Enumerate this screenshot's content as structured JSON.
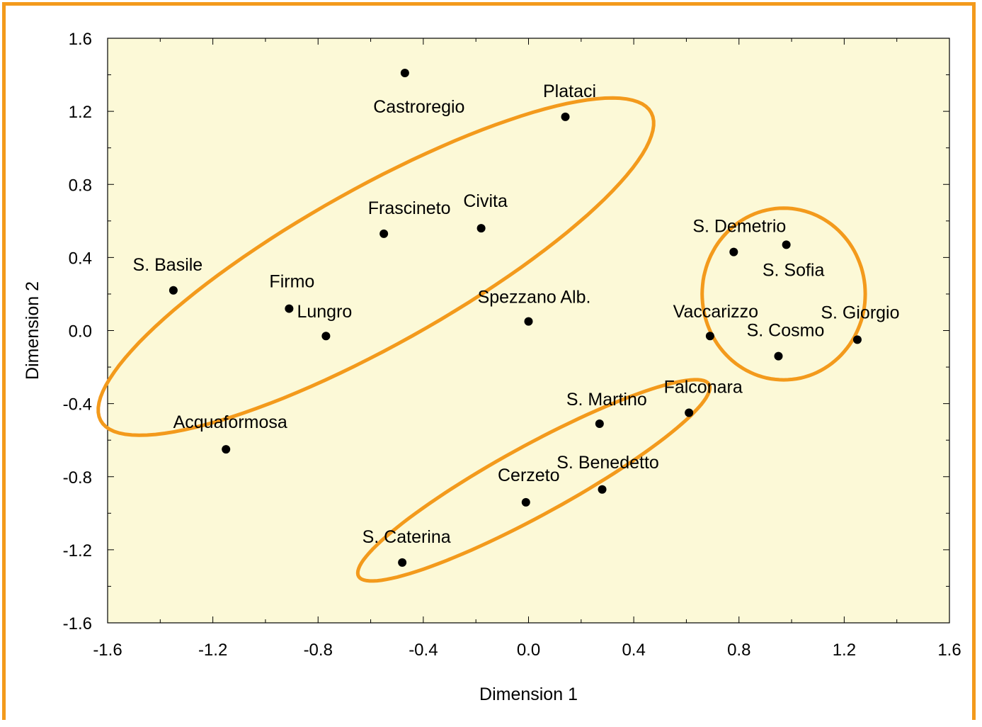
{
  "chart_data": {
    "type": "scatter",
    "title": "",
    "xlabel": "Dimension 1",
    "ylabel": "Dimension 2",
    "xlim": [
      -1.6,
      1.6
    ],
    "ylim": [
      -1.6,
      1.6
    ],
    "xticks": [
      "-1.6",
      "-1.2",
      "-0.8",
      "-0.4",
      "0.0",
      "0.4",
      "0.8",
      "1.2",
      "1.6"
    ],
    "yticks": [
      "1.6",
      "1.2",
      "0.8",
      "0.4",
      "0.0",
      "-0.4",
      "-0.8",
      "-1.2",
      "-1.6"
    ],
    "grid": false,
    "colors": {
      "plot_background": "#fcf9d7",
      "ellipse": "#f39a1c",
      "frame": "#f39a1c",
      "marker": "#000000"
    },
    "points": [
      {
        "label": "Castroregio",
        "x": -0.47,
        "y": 1.41
      },
      {
        "label": "Plataci",
        "x": 0.14,
        "y": 1.17
      },
      {
        "label": "Frascineto",
        "x": -0.55,
        "y": 0.53
      },
      {
        "label": "Civita",
        "x": -0.18,
        "y": 0.56
      },
      {
        "label": "S. Basile",
        "x": -1.35,
        "y": 0.22
      },
      {
        "label": "Firmo",
        "x": -0.91,
        "y": 0.12
      },
      {
        "label": "Lungro",
        "x": -0.77,
        "y": -0.03
      },
      {
        "label": "Spezzano Alb.",
        "x": 0.0,
        "y": 0.05
      },
      {
        "label": "Acquaformosa",
        "x": -1.15,
        "y": -0.65
      },
      {
        "label": "S. Demetrio",
        "x": 0.78,
        "y": 0.43
      },
      {
        "label": "S. Sofia",
        "x": 0.98,
        "y": 0.47
      },
      {
        "label": "Vaccarizzo",
        "x": 0.69,
        "y": -0.03
      },
      {
        "label": "S. Cosmo",
        "x": 0.95,
        "y": -0.14
      },
      {
        "label": "S. Giorgio",
        "x": 1.25,
        "y": -0.05
      },
      {
        "label": "Falconara",
        "x": 0.61,
        "y": -0.45
      },
      {
        "label": "S. Martino",
        "x": 0.27,
        "y": -0.51
      },
      {
        "label": "S. Benedetto",
        "x": 0.28,
        "y": -0.87
      },
      {
        "label": "Cerzeto",
        "x": -0.01,
        "y": -0.94
      },
      {
        "label": "S. Caterina",
        "x": -0.48,
        "y": -1.27
      }
    ],
    "clusters": [
      {
        "members": [
          "S. Basile",
          "Firmo",
          "Lungro",
          "Frascineto",
          "Civita",
          "Castroregio",
          "Acquaformosa"
        ],
        "cx": -0.58,
        "cy": 0.35,
        "rx": 1.35,
        "ry": 0.38,
        "angle_deg": 40.5
      },
      {
        "members": [
          "Falconara",
          "S. Martino",
          "S. Benedetto",
          "Cerzeto",
          "S. Caterina"
        ],
        "cx": 0.02,
        "cy": -0.82,
        "rx": 0.85,
        "ry": 0.17,
        "angle_deg": 39
      },
      {
        "members": [
          "S. Demetrio",
          "S. Sofia",
          "Vaccarizzo",
          "S. Cosmo",
          "S. Giorgio"
        ],
        "cx": 0.97,
        "cy": 0.2,
        "rx": 0.31,
        "ry": 0.47,
        "angle_deg": 0
      }
    ]
  }
}
